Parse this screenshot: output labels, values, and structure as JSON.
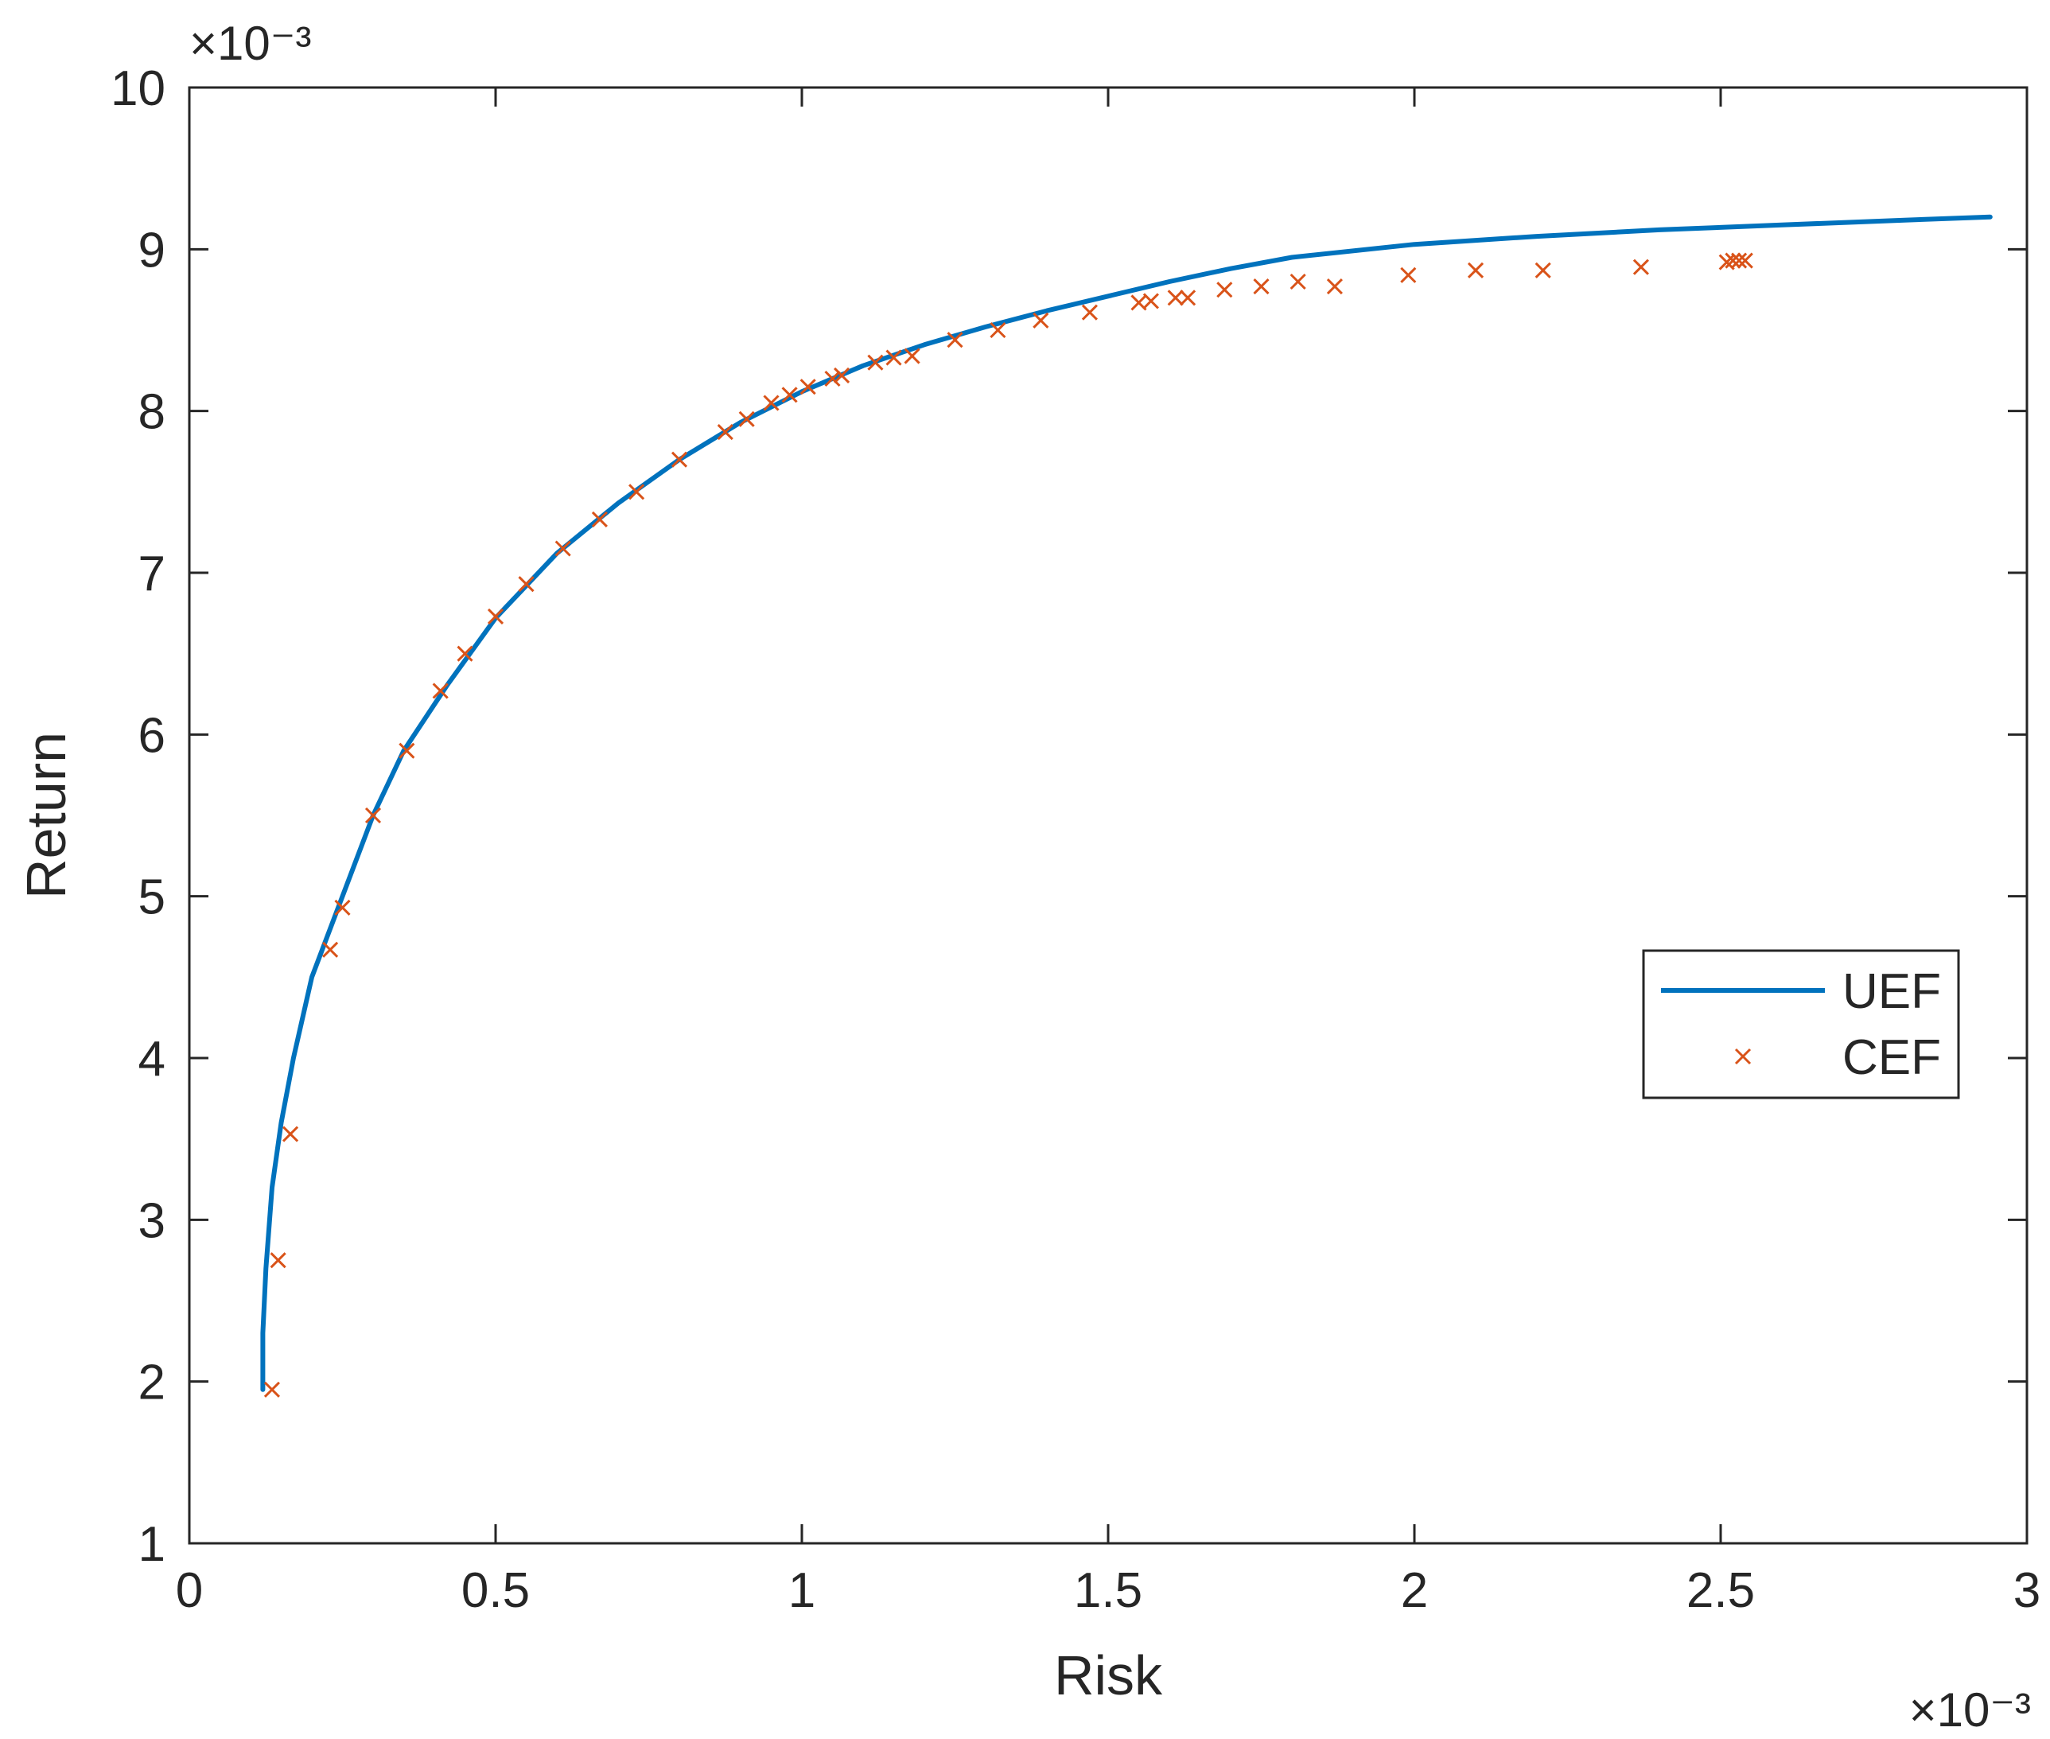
{
  "chart_data": {
    "type": "line",
    "xlabel": "Risk",
    "ylabel": "Return",
    "x_exponent_label": "×10⁻³",
    "y_exponent_label": "×10⁻³",
    "xlim": [
      0,
      3
    ],
    "ylim": [
      1,
      10
    ],
    "x_ticks": [
      "0",
      "0.5",
      "1",
      "1.5",
      "2",
      "2.5",
      "3"
    ],
    "y_ticks": [
      "1",
      "2",
      "3",
      "4",
      "5",
      "6",
      "7",
      "8",
      "9",
      "10"
    ],
    "grid": false,
    "legend_position": "right",
    "series": [
      {
        "name": "UEF",
        "style": "line",
        "color": "#0072BD",
        "points": [
          [
            0.12,
            1.95
          ],
          [
            0.12,
            2.3
          ],
          [
            0.125,
            2.7
          ],
          [
            0.135,
            3.2
          ],
          [
            0.15,
            3.6
          ],
          [
            0.17,
            4.0
          ],
          [
            0.2,
            4.5
          ],
          [
            0.25,
            5.0
          ],
          [
            0.3,
            5.5
          ],
          [
            0.35,
            5.9
          ],
          [
            0.42,
            6.3
          ],
          [
            0.5,
            6.72
          ],
          [
            0.6,
            7.12
          ],
          [
            0.7,
            7.43
          ],
          [
            0.8,
            7.7
          ],
          [
            0.9,
            7.93
          ],
          [
            1.0,
            8.12
          ],
          [
            1.1,
            8.28
          ],
          [
            1.2,
            8.41
          ],
          [
            1.3,
            8.52
          ],
          [
            1.4,
            8.62
          ],
          [
            1.5,
            8.71
          ],
          [
            1.6,
            8.8
          ],
          [
            1.7,
            8.88
          ],
          [
            1.8,
            8.95
          ],
          [
            2.0,
            9.03
          ],
          [
            2.2,
            9.08
          ],
          [
            2.4,
            9.12
          ],
          [
            2.6,
            9.15
          ],
          [
            2.8,
            9.18
          ],
          [
            2.94,
            9.2
          ]
        ]
      },
      {
        "name": "CEF",
        "style": "marker-x",
        "color": "#D95319",
        "points": [
          [
            0.135,
            1.95
          ],
          [
            0.145,
            2.75
          ],
          [
            0.165,
            3.53
          ],
          [
            0.23,
            4.67
          ],
          [
            0.25,
            4.93
          ],
          [
            0.3,
            5.5
          ],
          [
            0.355,
            5.9
          ],
          [
            0.41,
            6.27
          ],
          [
            0.45,
            6.5
          ],
          [
            0.5,
            6.73
          ],
          [
            0.55,
            6.93
          ],
          [
            0.61,
            7.15
          ],
          [
            0.67,
            7.33
          ],
          [
            0.73,
            7.5
          ],
          [
            0.8,
            7.7
          ],
          [
            0.875,
            7.87
          ],
          [
            0.91,
            7.95
          ],
          [
            0.95,
            8.05
          ],
          [
            0.98,
            8.1
          ],
          [
            1.01,
            8.15
          ],
          [
            1.05,
            8.2
          ],
          [
            1.065,
            8.22
          ],
          [
            1.12,
            8.3
          ],
          [
            1.15,
            8.33
          ],
          [
            1.18,
            8.34
          ],
          [
            1.25,
            8.44
          ],
          [
            1.32,
            8.5
          ],
          [
            1.39,
            8.56
          ],
          [
            1.47,
            8.61
          ],
          [
            1.55,
            8.67
          ],
          [
            1.57,
            8.68
          ],
          [
            1.61,
            8.7
          ],
          [
            1.63,
            8.7
          ],
          [
            1.69,
            8.75
          ],
          [
            1.75,
            8.77
          ],
          [
            1.81,
            8.8
          ],
          [
            1.87,
            8.77
          ],
          [
            1.99,
            8.84
          ],
          [
            2.1,
            8.87
          ],
          [
            2.21,
            8.87
          ],
          [
            2.37,
            8.89
          ],
          [
            2.51,
            8.92
          ],
          [
            2.52,
            8.93
          ],
          [
            2.53,
            8.93
          ],
          [
            2.54,
            8.93
          ]
        ]
      }
    ]
  }
}
